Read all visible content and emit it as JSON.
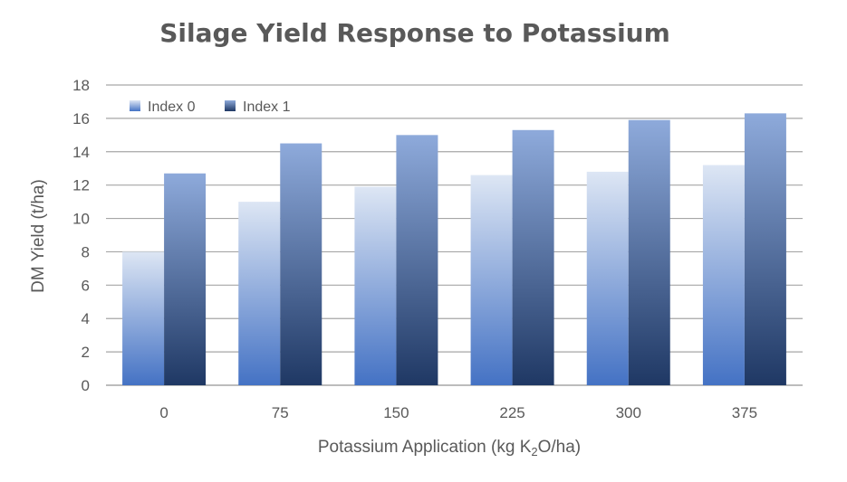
{
  "chart_data": {
    "type": "bar",
    "title": "Silage Yield Response to Potassium",
    "xlabel": "Potassium Application (kg K",
    "xlabel_sub": "2",
    "xlabel_end": "O/ha)",
    "ylabel": "DM Yield (t/ha)",
    "categories": [
      "0",
      "75",
      "150",
      "225",
      "300",
      "375"
    ],
    "ylim": [
      0,
      18
    ],
    "yticks": [
      "0",
      "2",
      "4",
      "6",
      "8",
      "10",
      "12",
      "14",
      "16",
      "18"
    ],
    "grid": true,
    "legend_position": "top-left",
    "series": [
      {
        "name": "Index 0",
        "values": [
          8.0,
          11.0,
          11.9,
          12.6,
          12.8,
          13.2
        ]
      },
      {
        "name": "Index 1",
        "values": [
          12.7,
          14.5,
          15.0,
          15.3,
          15.9,
          16.3
        ]
      }
    ]
  },
  "colors": {
    "index0_top": "#dde6f4",
    "index0_bottom": "#4472c4",
    "index1_top": "#8eaadb",
    "index1_bottom": "#1f3864",
    "grid": "#a6a6a6",
    "text": "#595959"
  }
}
